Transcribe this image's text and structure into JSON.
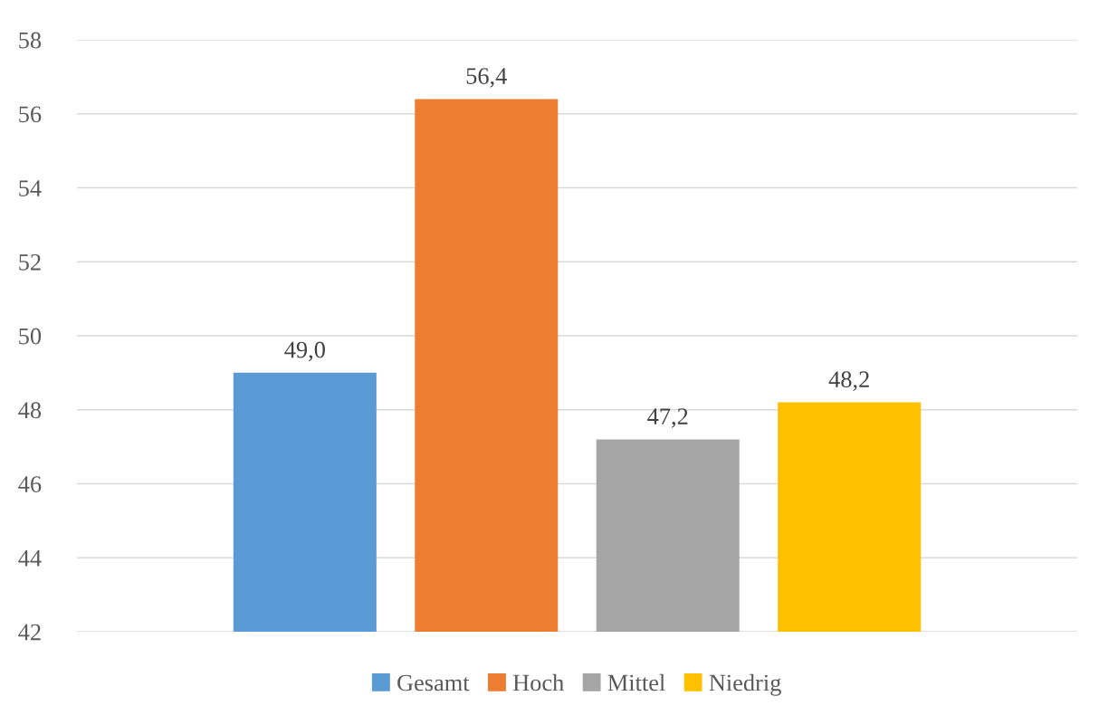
{
  "chart_data": {
    "type": "bar",
    "categories": [
      null
    ],
    "series": [
      {
        "name": "Gesamt",
        "color": "#5b9bd5",
        "values": [
          49.0
        ],
        "value_labels": [
          "49,0"
        ]
      },
      {
        "name": "Hoch",
        "color": "#ed7d31",
        "values": [
          56.4
        ],
        "value_labels": [
          "56,4"
        ]
      },
      {
        "name": "Mittel",
        "color": "#a5a5a5",
        "values": [
          47.2
        ],
        "value_labels": [
          "47,2"
        ]
      },
      {
        "name": "Niedrig",
        "color": "#ffc000",
        "values": [
          48.2
        ],
        "value_labels": [
          "48,2"
        ]
      }
    ],
    "ylim": [
      42,
      58
    ],
    "yticks": [
      42,
      44,
      46,
      48,
      50,
      52,
      54,
      56,
      58
    ],
    "grid": "y",
    "legend": "bottom"
  }
}
